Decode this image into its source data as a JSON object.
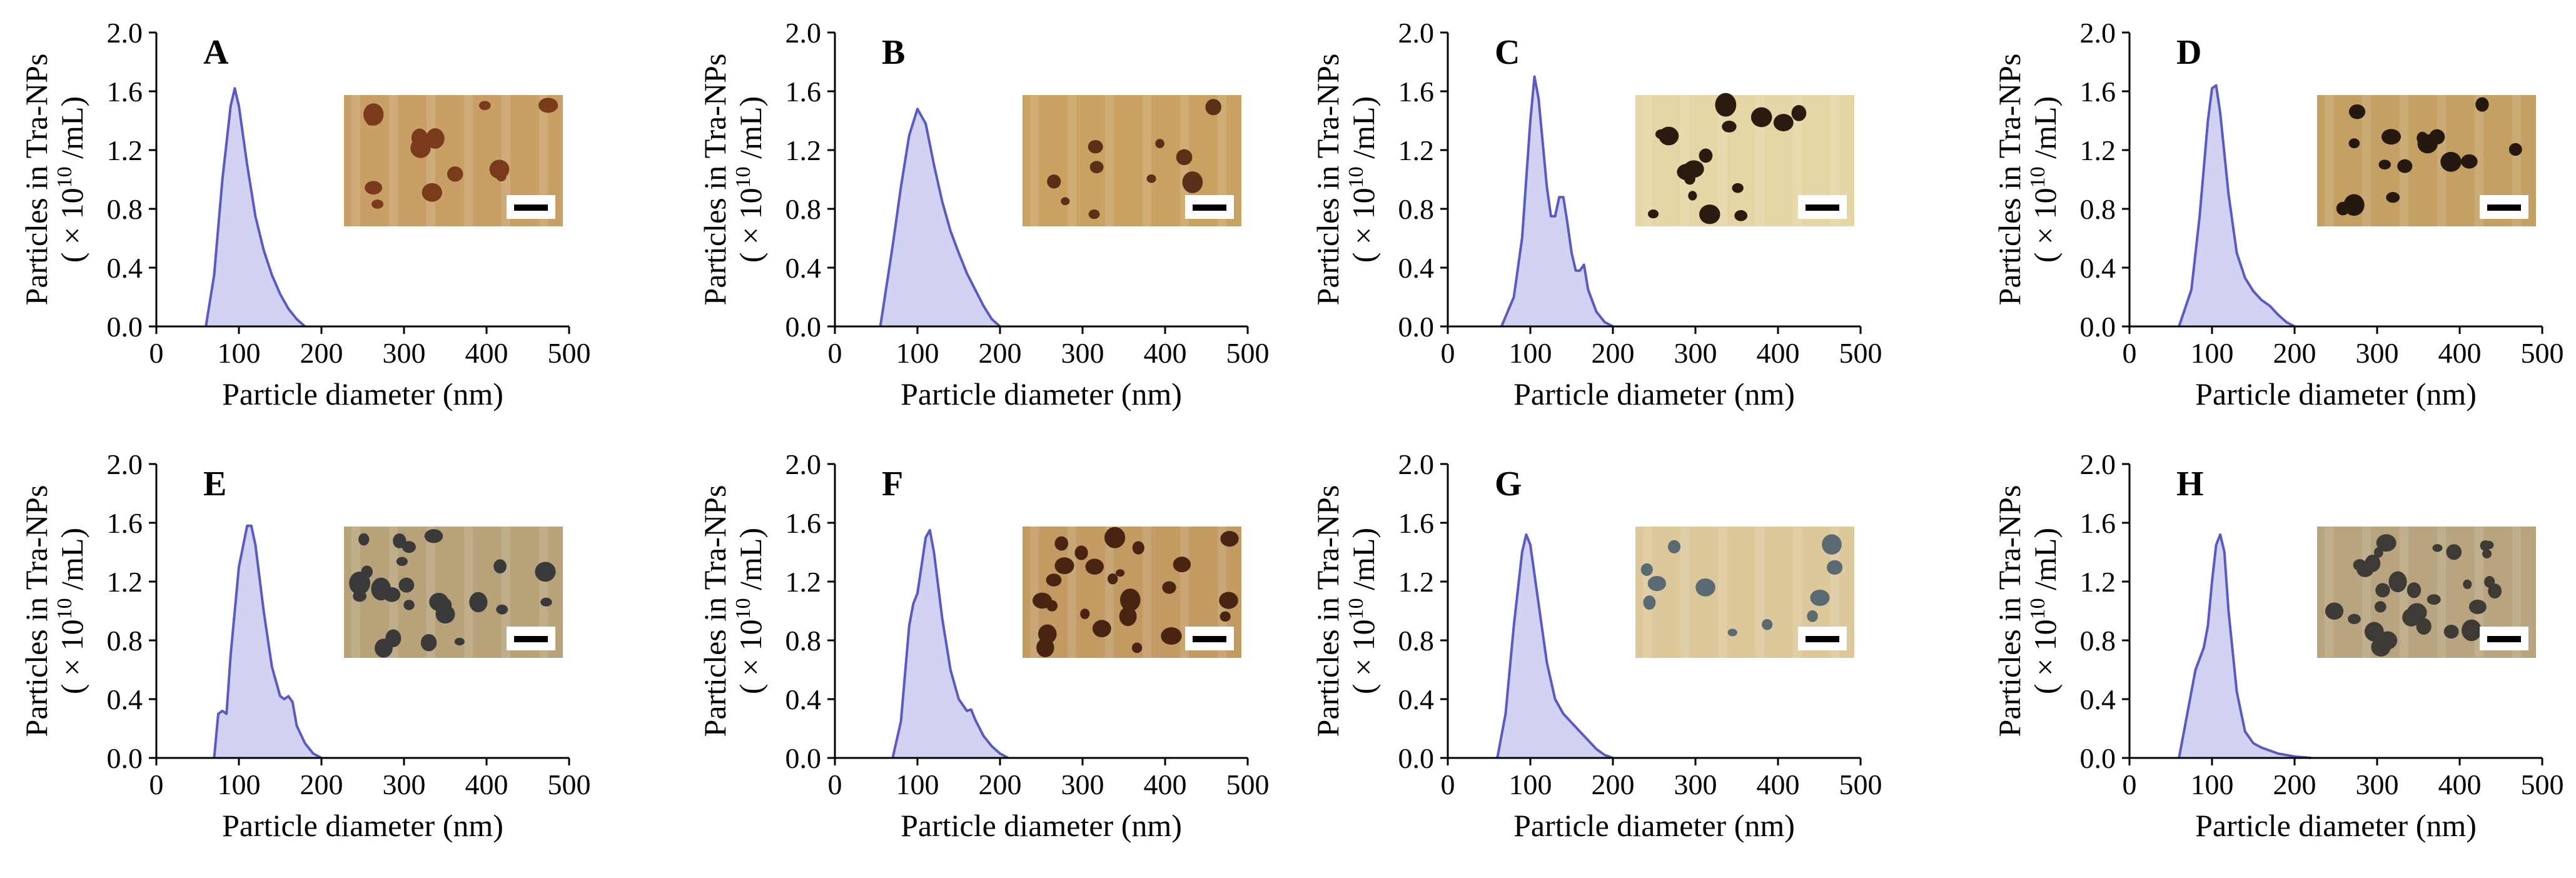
{
  "figure": {
    "panel_labels": [
      "A",
      "B",
      "C",
      "D",
      "E",
      "F",
      "G",
      "H"
    ]
  },
  "colors": {
    "curve_stroke": "#5a5ac4",
    "curve_fill": "#d2d2f2",
    "axis": "#000000"
  },
  "chart_data": [
    {
      "panel": "A",
      "type": "area",
      "xlabel": "Particle diameter (nm)",
      "ylabel_line1": "Particles in Tra-NPs",
      "ylabel_unit": "( × 10",
      "ylabel_exp": "10",
      "ylabel_tail": " /mL)",
      "xlim": [
        0,
        500
      ],
      "ylim": [
        0,
        2.0
      ],
      "xticks": [
        "0",
        "100",
        "200",
        "300",
        "400",
        "500"
      ],
      "yticks": [
        "0.0",
        "0.4",
        "0.8",
        "1.2",
        "1.6",
        "2.0"
      ],
      "x": [
        60,
        70,
        80,
        90,
        95,
        100,
        110,
        120,
        130,
        140,
        150,
        160,
        170,
        180
      ],
      "y": [
        0,
        0.35,
        1.0,
        1.5,
        1.62,
        1.5,
        1.1,
        0.75,
        0.52,
        0.35,
        0.22,
        0.12,
        0.05,
        0
      ],
      "inset": {
        "base": "#c8a066",
        "particle": "#7a3a1c",
        "particles": 14
      }
    },
    {
      "panel": "B",
      "type": "area",
      "xlabel": "Particle diameter (nm)",
      "ylabel_line1": "Particles in Tra-NPs",
      "ylabel_unit": "( × 10",
      "ylabel_exp": "10",
      "ylabel_tail": " /mL)",
      "xlim": [
        0,
        500
      ],
      "ylim": [
        0,
        2.0
      ],
      "xticks": [
        "0",
        "100",
        "200",
        "300",
        "400",
        "500"
      ],
      "yticks": [
        "0.0",
        "0.4",
        "0.8",
        "1.2",
        "1.6",
        "2.0"
      ],
      "x": [
        55,
        70,
        80,
        90,
        100,
        110,
        120,
        130,
        140,
        150,
        160,
        170,
        180,
        190,
        200
      ],
      "y": [
        0,
        0.55,
        0.95,
        1.3,
        1.48,
        1.38,
        1.1,
        0.85,
        0.65,
        0.5,
        0.36,
        0.25,
        0.14,
        0.05,
        0
      ],
      "inset": {
        "base": "#c9a262",
        "particle": "#5a3018",
        "particles": 10
      }
    },
    {
      "panel": "C",
      "type": "area",
      "xlabel": "Particle diameter (nm)",
      "ylabel_line1": "Particles in Tra-NPs",
      "ylabel_unit": "( × 10",
      "ylabel_exp": "10",
      "ylabel_tail": " /mL)",
      "xlim": [
        0,
        500
      ],
      "ylim": [
        0,
        2.0
      ],
      "xticks": [
        "0",
        "100",
        "200",
        "300",
        "400",
        "500"
      ],
      "yticks": [
        "0.0",
        "0.4",
        "0.8",
        "1.2",
        "1.6",
        "2.0"
      ],
      "x": [
        65,
        80,
        90,
        100,
        105,
        110,
        120,
        125,
        130,
        135,
        140,
        145,
        150,
        155,
        160,
        165,
        170,
        180,
        190,
        200
      ],
      "y": [
        0,
        0.2,
        0.6,
        1.4,
        1.7,
        1.55,
        0.95,
        0.75,
        0.75,
        0.88,
        0.88,
        0.7,
        0.5,
        0.38,
        0.38,
        0.42,
        0.25,
        0.1,
        0.03,
        0
      ],
      "inset": {
        "base": "#e6d6a6",
        "particle": "#2a1a10",
        "particles": 16
      }
    },
    {
      "panel": "D",
      "type": "area",
      "xlabel": "Particle diameter (nm)",
      "ylabel_line1": "Particles in Tra-NPs",
      "ylabel_unit": "( × 10",
      "ylabel_exp": "10",
      "ylabel_tail": " /mL)",
      "xlim": [
        0,
        500
      ],
      "ylim": [
        0,
        2.0
      ],
      "xticks": [
        "0",
        "100",
        "200",
        "300",
        "400",
        "500"
      ],
      "yticks": [
        "0.0",
        "0.4",
        "0.8",
        "1.2",
        "1.6",
        "2.0"
      ],
      "x": [
        60,
        75,
        85,
        95,
        100,
        105,
        110,
        120,
        130,
        140,
        150,
        160,
        170,
        180,
        190,
        200
      ],
      "y": [
        0,
        0.25,
        0.75,
        1.4,
        1.62,
        1.64,
        1.45,
        0.9,
        0.5,
        0.33,
        0.24,
        0.18,
        0.14,
        0.08,
        0.03,
        0
      ],
      "inset": {
        "base": "#c4a062",
        "particle": "#241810",
        "particles": 18
      }
    },
    {
      "panel": "E",
      "type": "area",
      "xlabel": "Particle diameter (nm)",
      "ylabel_line1": "Particles in Tra-NPs",
      "ylabel_unit": "( × 10",
      "ylabel_exp": "10",
      "ylabel_tail": " /mL)",
      "xlim": [
        0,
        500
      ],
      "ylim": [
        0,
        2.0
      ],
      "xticks": [
        "0",
        "100",
        "200",
        "300",
        "400",
        "500"
      ],
      "yticks": [
        "0.0",
        "0.4",
        "0.8",
        "1.2",
        "1.6",
        "2.0"
      ],
      "x": [
        70,
        75,
        80,
        85,
        90,
        100,
        110,
        115,
        120,
        130,
        140,
        150,
        155,
        160,
        165,
        170,
        180,
        190,
        200
      ],
      "y": [
        0,
        0.3,
        0.32,
        0.3,
        0.7,
        1.3,
        1.58,
        1.58,
        1.45,
        1.0,
        0.62,
        0.42,
        0.4,
        0.42,
        0.38,
        0.22,
        0.1,
        0.03,
        0
      ],
      "inset": {
        "base": "#b8a27a",
        "particle": "#3a3a3a",
        "particles": 26
      }
    },
    {
      "panel": "F",
      "type": "area",
      "xlabel": "Particle diameter (nm)",
      "ylabel_line1": "Particles in Tra-NPs",
      "ylabel_unit": "( × 10",
      "ylabel_exp": "10",
      "ylabel_tail": " /mL)",
      "xlim": [
        0,
        500
      ],
      "ylim": [
        0,
        2.0
      ],
      "xticks": [
        "0",
        "100",
        "200",
        "300",
        "400",
        "500"
      ],
      "yticks": [
        "0.0",
        "0.4",
        "0.8",
        "1.2",
        "1.6",
        "2.0"
      ],
      "x": [
        70,
        80,
        90,
        95,
        100,
        110,
        115,
        120,
        130,
        140,
        150,
        160,
        165,
        170,
        180,
        190,
        200,
        210
      ],
      "y": [
        0,
        0.25,
        0.9,
        1.05,
        1.12,
        1.5,
        1.55,
        1.4,
        0.95,
        0.6,
        0.4,
        0.32,
        0.33,
        0.26,
        0.15,
        0.08,
        0.03,
        0
      ],
      "inset": {
        "base": "#c29a62",
        "particle": "#4a2412",
        "particles": 24
      }
    },
    {
      "panel": "G",
      "type": "area",
      "xlabel": "Particle diameter (nm)",
      "ylabel_line1": "Particles in Tra-NPs",
      "ylabel_unit": "( × 10",
      "ylabel_exp": "10",
      "ylabel_tail": " /mL)",
      "xlim": [
        0,
        500
      ],
      "ylim": [
        0,
        2.0
      ],
      "xticks": [
        "0",
        "100",
        "200",
        "300",
        "400",
        "500"
      ],
      "yticks": [
        "0.0",
        "0.4",
        "0.8",
        "1.2",
        "1.6",
        "2.0"
      ],
      "x": [
        60,
        70,
        80,
        90,
        95,
        100,
        110,
        120,
        130,
        140,
        150,
        160,
        170,
        180,
        190,
        200
      ],
      "y": [
        0,
        0.3,
        0.9,
        1.4,
        1.52,
        1.45,
        1.05,
        0.65,
        0.4,
        0.3,
        0.24,
        0.18,
        0.12,
        0.06,
        0.02,
        0
      ],
      "inset": {
        "base": "#dcc89a",
        "particle": "#5a6a72",
        "particles": 12
      }
    },
    {
      "panel": "H",
      "type": "area",
      "xlabel": "Particle diameter (nm)",
      "ylabel_line1": "Particles in Tra-NPs",
      "ylabel_unit": "( × 10",
      "ylabel_exp": "10",
      "ylabel_tail": " /mL)",
      "xlim": [
        0,
        500
      ],
      "ylim": [
        0,
        2.0
      ],
      "xticks": [
        "0",
        "100",
        "200",
        "300",
        "400",
        "500"
      ],
      "yticks": [
        "0.0",
        "0.4",
        "0.8",
        "1.2",
        "1.6",
        "2.0"
      ],
      "x": [
        60,
        70,
        80,
        90,
        95,
        100,
        105,
        110,
        115,
        120,
        130,
        140,
        150,
        160,
        170,
        180,
        200,
        220
      ],
      "y": [
        0,
        0.3,
        0.6,
        0.75,
        0.9,
        1.2,
        1.45,
        1.52,
        1.4,
        1.0,
        0.45,
        0.18,
        0.1,
        0.07,
        0.05,
        0.03,
        0.01,
        0
      ],
      "inset": {
        "base": "#b8a47e",
        "particle": "#3e3a36",
        "particles": 30
      }
    }
  ]
}
